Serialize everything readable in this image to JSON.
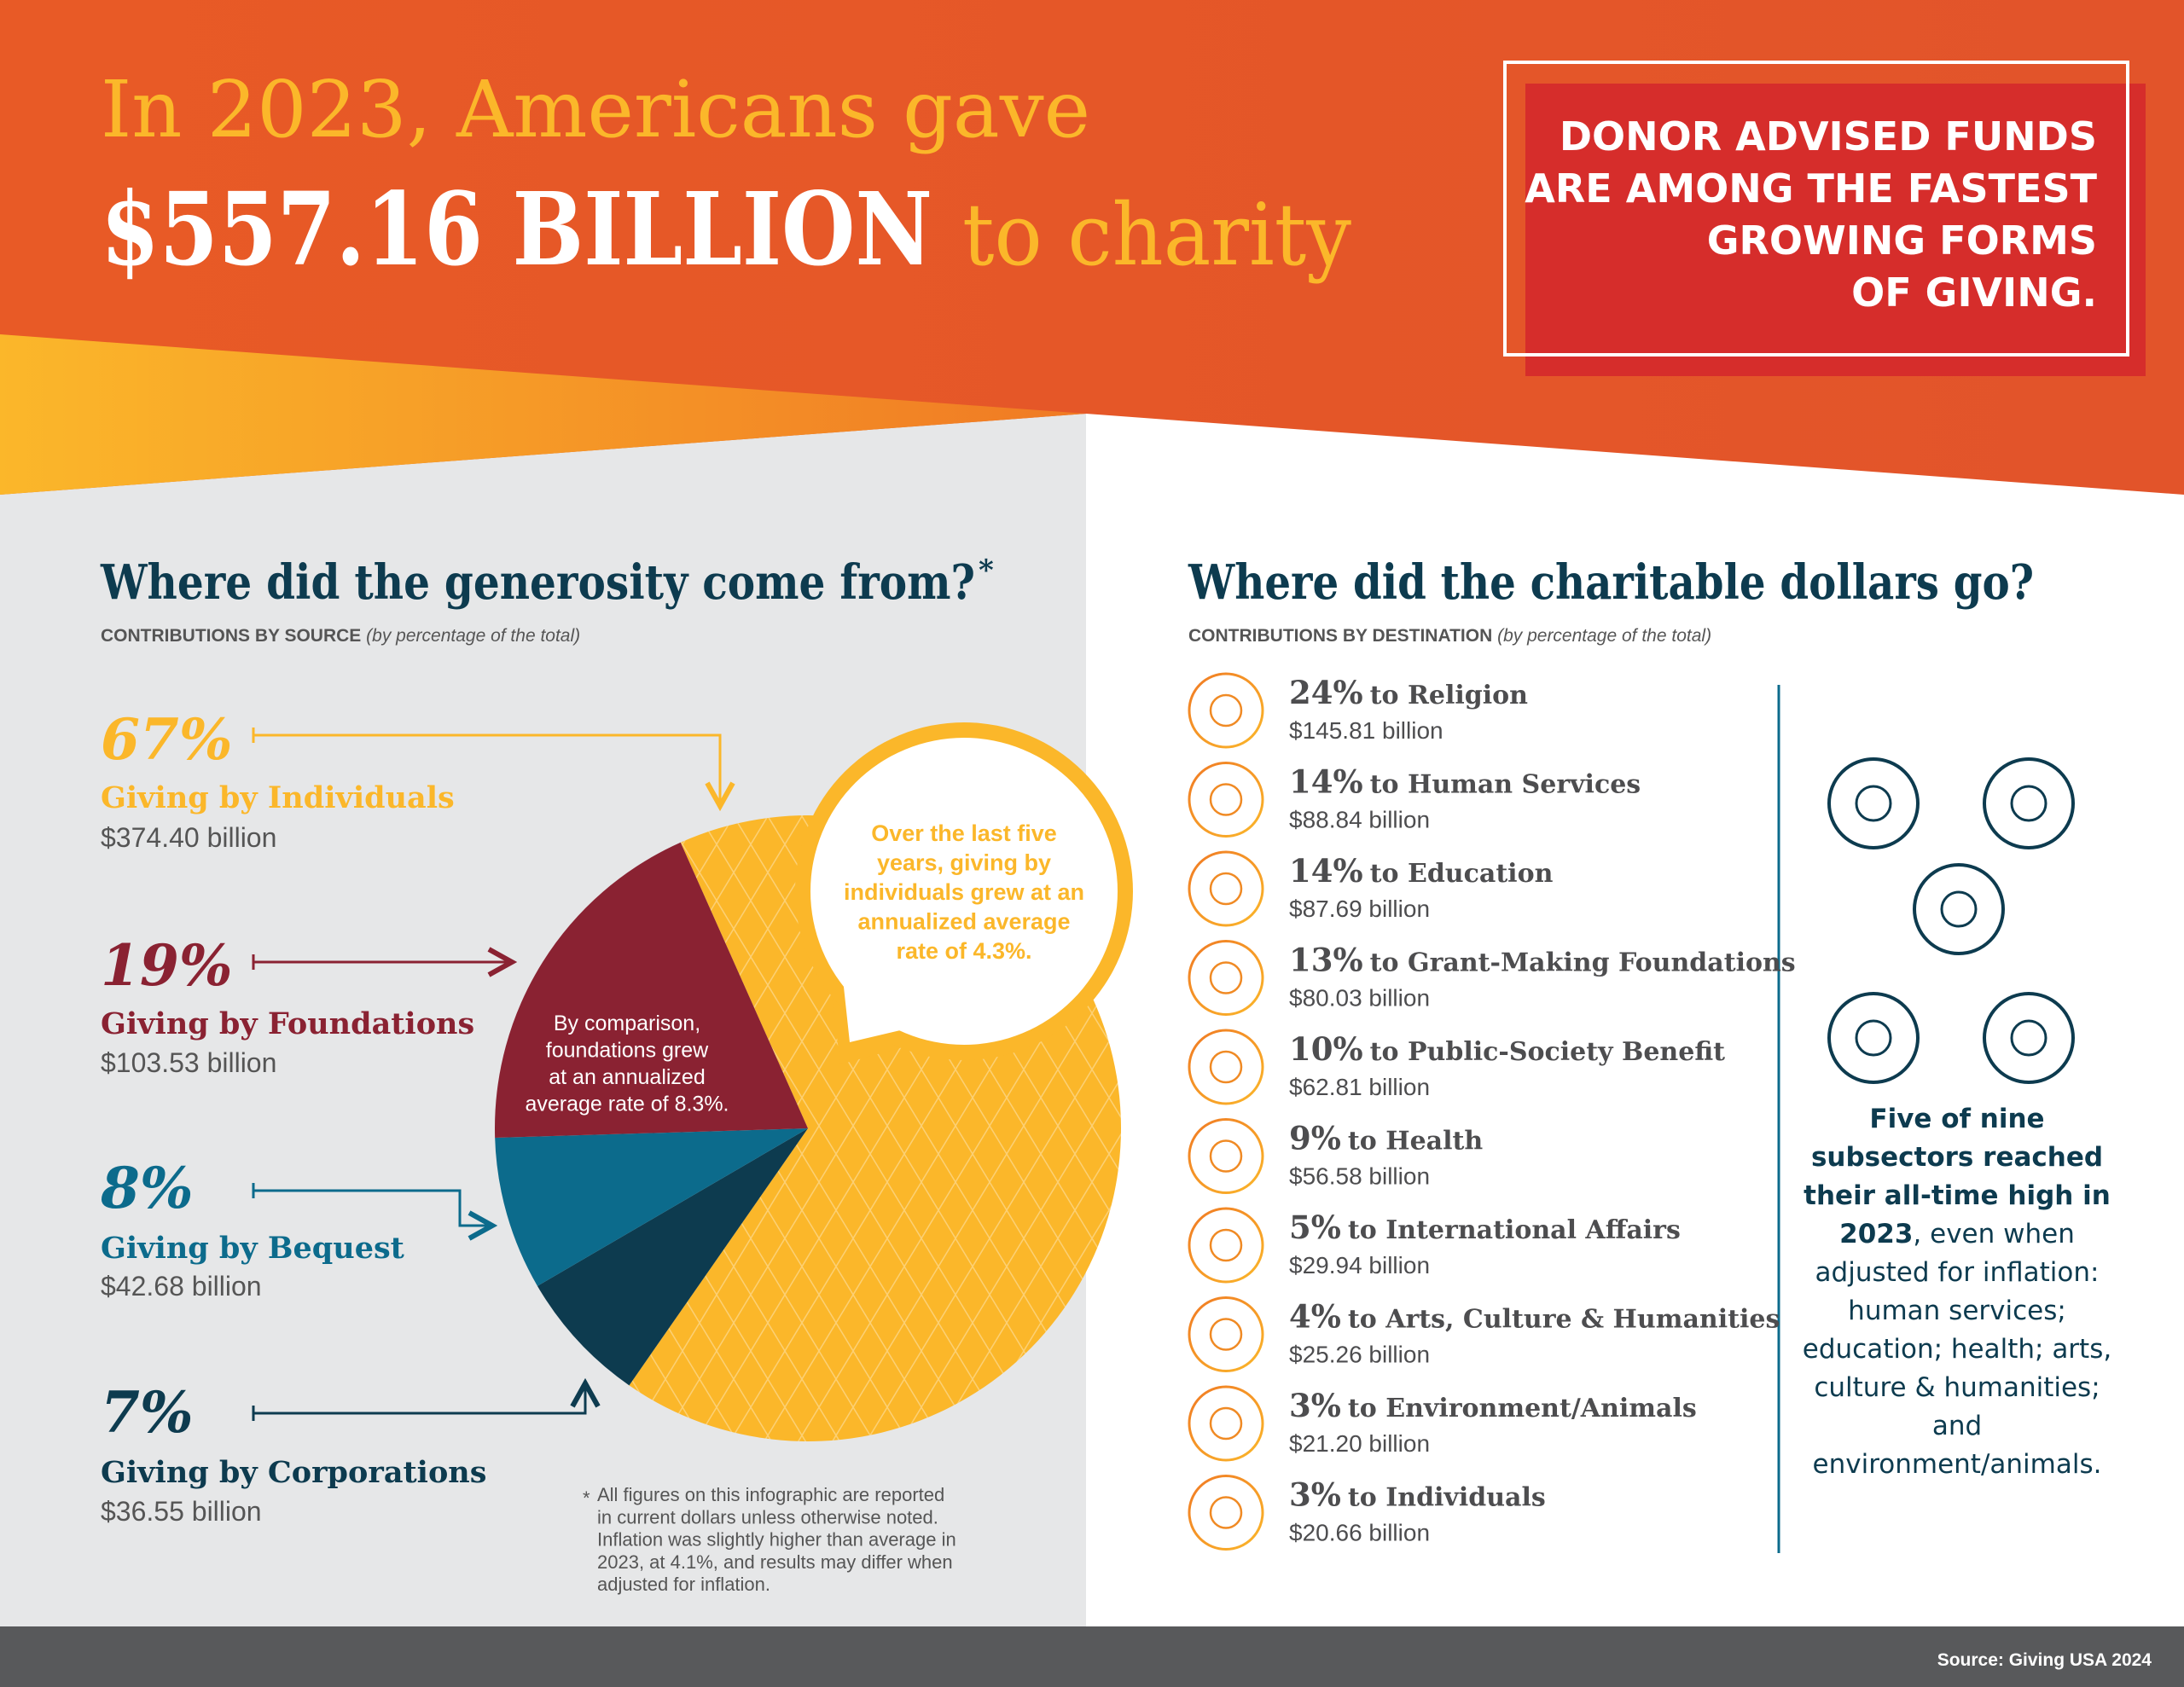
{
  "header": {
    "line1": "In 2023, Americans gave",
    "amount": "$557.16 BILLION",
    "line2_end": "to charity",
    "callout_lines": [
      "DONOR ADVISED FUNDS",
      "ARE AMONG THE FASTEST",
      "GROWING FORMS",
      "OF GIVING."
    ]
  },
  "chart_data": {
    "type": "pie",
    "title": "Where did the generosity come from?",
    "title_mark": "*",
    "subtitle": "CONTRIBUTIONS BY SOURCE",
    "subtitle_note": "(by percentage of the total)",
    "categories": [
      "Giving by Individuals",
      "Giving by Foundations",
      "Giving by Bequest",
      "Giving by Corporations"
    ],
    "values": [
      67,
      19,
      8,
      7
    ],
    "value_labels": [
      "67%",
      "19%",
      "8%",
      "7%"
    ],
    "amounts": [
      "$374.40 billion",
      "$103.53 billion",
      "$42.68 billion",
      "$36.55 billion"
    ],
    "colors": [
      "#fbb72a",
      "#8a2232",
      "#0c6b8c",
      "#0d3b4f"
    ],
    "annotation_individuals": [
      "Over the last five",
      "years, giving by",
      "individuals grew at an",
      "annualized average",
      "rate of 4.3%."
    ],
    "annotation_foundations": [
      "By comparison,",
      "foundations grew",
      "at an annualized",
      "average rate of 8.3%."
    ]
  },
  "footnote": {
    "mark": "*",
    "lines": [
      "All figures on this infographic are reported",
      "in current dollars unless otherwise noted.",
      "Inflation was slightly higher than average in",
      "2023, at 4.1%, and results may differ when",
      "adjusted for inflation."
    ]
  },
  "destinations": {
    "title": "Where did the charitable dollars go?",
    "subtitle": "CONTRIBUTIONS BY DESTINATION",
    "subtitle_note": "(by percentage of the total)",
    "items": [
      {
        "percent": "24%",
        "label": "to Religion",
        "amount": "$145.81 billion"
      },
      {
        "percent": "14%",
        "label": "to Human Services",
        "amount": "$88.84 billion"
      },
      {
        "percent": "14%",
        "label": "to Education",
        "amount": "$87.69 billion"
      },
      {
        "percent": "13%",
        "label": "to Grant-Making Foundations",
        "amount": "$80.03 billion"
      },
      {
        "percent": "10%",
        "label": "to Public-Society Benefit",
        "amount": "$62.81 billion"
      },
      {
        "percent": "9%",
        "label": "to Health",
        "amount": "$56.58 billion"
      },
      {
        "percent": "5%",
        "label": "to International Affairs",
        "amount": "$29.94 billion"
      },
      {
        "percent": "4%",
        "label": "to Arts, Culture & Humanities",
        "amount": "$25.26 billion"
      },
      {
        "percent": "3%",
        "label": "to Environment/Animals",
        "amount": "$21.20 billion"
      },
      {
        "percent": "3%",
        "label": "to Individuals",
        "amount": "$20.66 billion"
      }
    ]
  },
  "sidebar": {
    "bold": "Five of nine subsectors reached their all-time high in 2023",
    "text": ", even when adjusted for inflation: human services; education; health; arts, culture & humanities; and environment/animals."
  },
  "source": "Source: Giving USA 2024"
}
